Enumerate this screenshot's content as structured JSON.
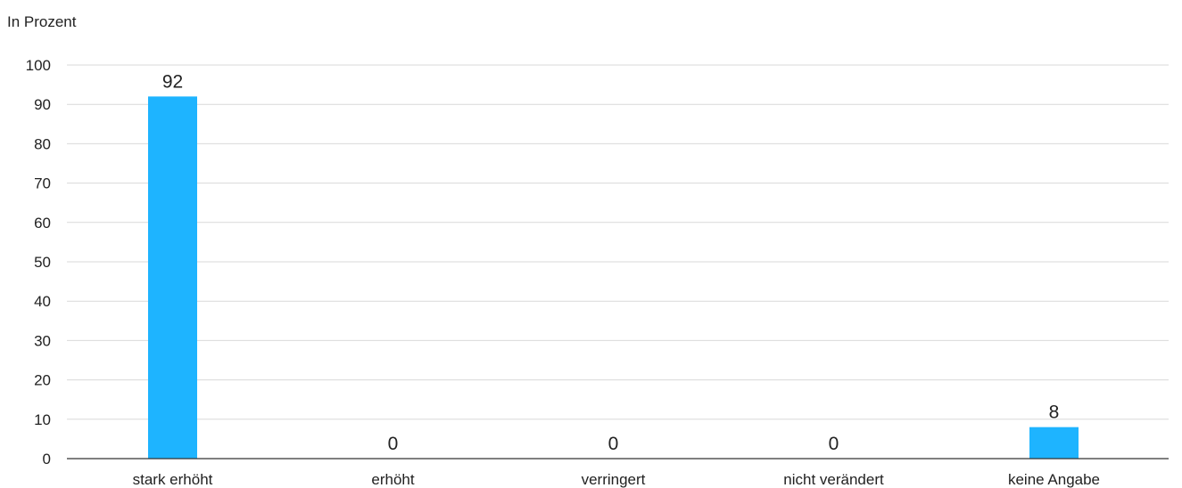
{
  "chart_data": {
    "type": "bar",
    "unit_label": "In Prozent",
    "categories": [
      "stark erhöht",
      "erhöht",
      "verringert",
      "nicht verändert",
      "keine Angabe"
    ],
    "values": [
      92,
      0,
      0,
      0,
      8
    ],
    "ylim": [
      0,
      100
    ],
    "yticks": [
      0,
      10,
      20,
      30,
      40,
      50,
      60,
      70,
      80,
      90,
      100
    ],
    "grid": true,
    "legend": "none",
    "colors": {
      "bar": "#1EB4FF",
      "grid": "#d9d9d9",
      "axis": "#333333"
    }
  }
}
